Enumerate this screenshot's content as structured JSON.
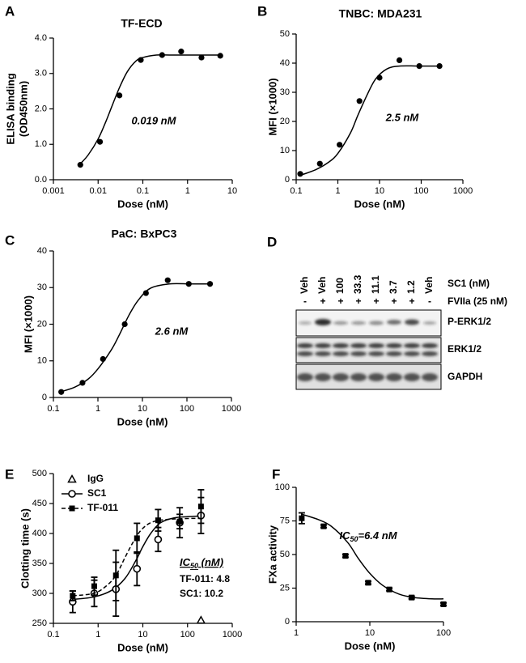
{
  "chart_data": [
    {
      "type": "scatter",
      "panel_label": "A",
      "title": "TF-ECD",
      "xlabel": "Dose (nM)",
      "ylabel": [
        "ELISA binding",
        "(OD450nm)"
      ],
      "xscale": "log",
      "xlim": [
        0.001,
        10
      ],
      "xticks": [
        0.001,
        0.01,
        0.1,
        1,
        10
      ],
      "ylim": [
        0,
        4
      ],
      "yticks": [
        {
          "value": 0,
          "label": "0.0"
        },
        {
          "value": 1,
          "label": "1.0"
        },
        {
          "value": 2,
          "label": "2.0"
        },
        {
          "value": 3,
          "label": "3.0"
        },
        {
          "value": 4,
          "label": "4.0"
        }
      ],
      "annotations": [
        "0.019 nM"
      ],
      "series": [
        {
          "color": "#000000",
          "marker": "circle",
          "line": "solid",
          "x": [
            0.004,
            0.011,
            0.03,
            0.09,
            0.27,
            0.72,
            2.05,
            5.4
          ],
          "values": [
            0.42,
            1.07,
            2.38,
            3.38,
            3.52,
            3.62,
            3.45,
            3.5
          ],
          "fit_x": [
            0.004,
            0.006,
            0.01,
            0.015,
            0.02,
            0.03,
            0.045,
            0.07,
            0.1,
            0.2,
            0.5,
            5.4
          ],
          "fit_values": [
            0.45,
            0.7,
            1.15,
            1.65,
            2.05,
            2.6,
            3.05,
            3.35,
            3.45,
            3.52,
            3.52,
            3.52
          ]
        }
      ]
    },
    {
      "type": "scatter",
      "panel_label": "B",
      "title": "TNBC: MDA231",
      "xlabel": "Dose (nM)",
      "ylabel": "MFI (×1000)",
      "xscale": "log",
      "xlim": [
        0.1,
        1000
      ],
      "xticks": [
        0.1,
        1,
        10,
        100,
        1000
      ],
      "ylim": [
        0,
        50
      ],
      "yticks": [
        0,
        10,
        20,
        30,
        40,
        50
      ],
      "annotations": [
        "2.5 nM"
      ],
      "series": [
        {
          "color": "#000000",
          "marker": "circle",
          "line": "solid",
          "x": [
            0.125,
            0.37,
            1.1,
            3.3,
            10,
            30,
            90,
            275
          ],
          "values": [
            2,
            5.5,
            12,
            27,
            35,
            41,
            39,
            39
          ],
          "fit_x": [
            0.125,
            0.3,
            0.6,
            1,
            2,
            3,
            5,
            8,
            15,
            30,
            100,
            275
          ],
          "fit_values": [
            1.5,
            3.5,
            6,
            9,
            16,
            22,
            29,
            34.5,
            38,
            39,
            39,
            39
          ]
        }
      ]
    },
    {
      "type": "scatter",
      "panel_label": "C",
      "title": "PaC: BxPC3",
      "xlabel": "Dose (nM)",
      "ylabel": "MFI (×1000)",
      "xscale": "log",
      "xlim": [
        0.1,
        1000
      ],
      "xticks": [
        0.1,
        1,
        10,
        100,
        1000
      ],
      "ylim": [
        0,
        40
      ],
      "yticks": [
        0,
        10,
        20,
        30,
        40
      ],
      "annotations": [
        "2.6 nM"
      ],
      "series": [
        {
          "color": "#000000",
          "marker": "circle",
          "line": "solid",
          "x": [
            0.15,
            0.45,
            1.3,
            4,
            12,
            37,
            110,
            330
          ],
          "values": [
            1.5,
            4,
            10.5,
            20,
            28.5,
            32,
            31,
            31
          ],
          "fit_x": [
            0.15,
            0.3,
            0.6,
            1,
            2,
            3,
            5,
            8,
            15,
            40,
            120,
            330
          ],
          "fit_values": [
            1.6,
            2.8,
            5,
            7.8,
            13,
            17,
            22.5,
            26.5,
            29.8,
            31,
            31,
            31
          ]
        }
      ]
    },
    {
      "type": "scatter",
      "panel_label": "E",
      "xlabel": "Dose (nM)",
      "ylabel": "Clotting time (s)",
      "xscale": "log",
      "xlim": [
        0.1,
        1000
      ],
      "xticks": [
        0.1,
        1,
        10,
        100,
        1000
      ],
      "ylim": [
        250,
        500
      ],
      "yticks": [
        250,
        300,
        350,
        400,
        450,
        500
      ],
      "annotations": [
        {
          "text": "IC",
          "sub": "50",
          "suffix": " (nM)"
        },
        "TF-011: 4.8",
        "SC1: 10.2"
      ],
      "series": [
        {
          "name": "IgG",
          "color": "#000000",
          "marker": "open-triangle",
          "x": [
            200
          ],
          "values": [
            255
          ]
        },
        {
          "name": "SC1",
          "color": "#000000",
          "marker": "open-circle",
          "line": "solid",
          "x": [
            0.27,
            0.82,
            2.5,
            7.4,
            22,
            67,
            200
          ],
          "values": [
            286,
            300,
            307,
            341,
            390,
            418,
            430
          ],
          "errors": [
            18,
            22,
            45,
            28,
            20,
            25,
            30
          ],
          "fit_x": [
            0.27,
            0.8,
            2,
            4,
            7,
            10,
            15,
            25,
            50,
            100,
            200
          ],
          "fit_values": [
            290,
            294,
            305,
            325,
            355,
            378,
            400,
            418,
            426,
            428,
            429
          ]
        },
        {
          "name": "TF-011",
          "color": "#000000",
          "marker": "square",
          "line": "dashed",
          "x": [
            0.27,
            0.82,
            2.5,
            7.4,
            22,
            67,
            200
          ],
          "values": [
            296,
            312,
            330,
            392,
            422,
            420,
            445
          ],
          "errors": [
            8,
            15,
            42,
            25,
            18,
            12,
            28
          ],
          "fit_x": [
            0.27,
            0.8,
            1.5,
            2.5,
            4,
            6,
            9,
            15,
            30,
            100,
            200
          ],
          "fit_values": [
            296,
            300,
            312,
            330,
            360,
            385,
            405,
            418,
            423,
            425,
            425
          ]
        }
      ]
    },
    {
      "type": "scatter",
      "panel_label": "F",
      "xlabel": "Dose (nM)",
      "ylabel": "FXa activity",
      "xscale": "log",
      "xlim": [
        1,
        100
      ],
      "xticks": [
        1,
        10,
        100
      ],
      "ylim": [
        0,
        100
      ],
      "yticks": [
        0,
        25,
        50,
        75,
        100
      ],
      "annotations": [
        {
          "text": "IC",
          "sub": "50",
          "suffix": "=6.4 nM"
        }
      ],
      "series": [
        {
          "color": "#000000",
          "marker": "square",
          "line": "solid",
          "x": [
            1.19,
            2.36,
            4.67,
            9.5,
            18.4,
            37,
            100
          ],
          "values": [
            77,
            71,
            49,
            29,
            24,
            18,
            13
          ],
          "errors": [
            4,
            1,
            1,
            1,
            1,
            1,
            1
          ],
          "fit_x": [
            1.19,
            2,
            3,
            5,
            7,
            10,
            15,
            25,
            40,
            70,
            100
          ],
          "fit_values": [
            80,
            76,
            71,
            59,
            47,
            36,
            27,
            20.5,
            18,
            17,
            17
          ]
        }
      ]
    }
  ],
  "blot": {
    "panel_label": "D",
    "row1": [
      "Veh",
      "Veh",
      "100",
      "33.3",
      "11.1",
      "3.7",
      "1.2",
      "Veh"
    ],
    "row1_label": "SC1 (nM)",
    "row2": [
      "-",
      "+",
      "+",
      "+",
      "+",
      "+",
      "+",
      "-"
    ],
    "row2_label": "FVIIa (25 nM)",
    "bands": [
      "P-ERK1/2",
      "ERK1/2",
      "GAPDH"
    ]
  }
}
